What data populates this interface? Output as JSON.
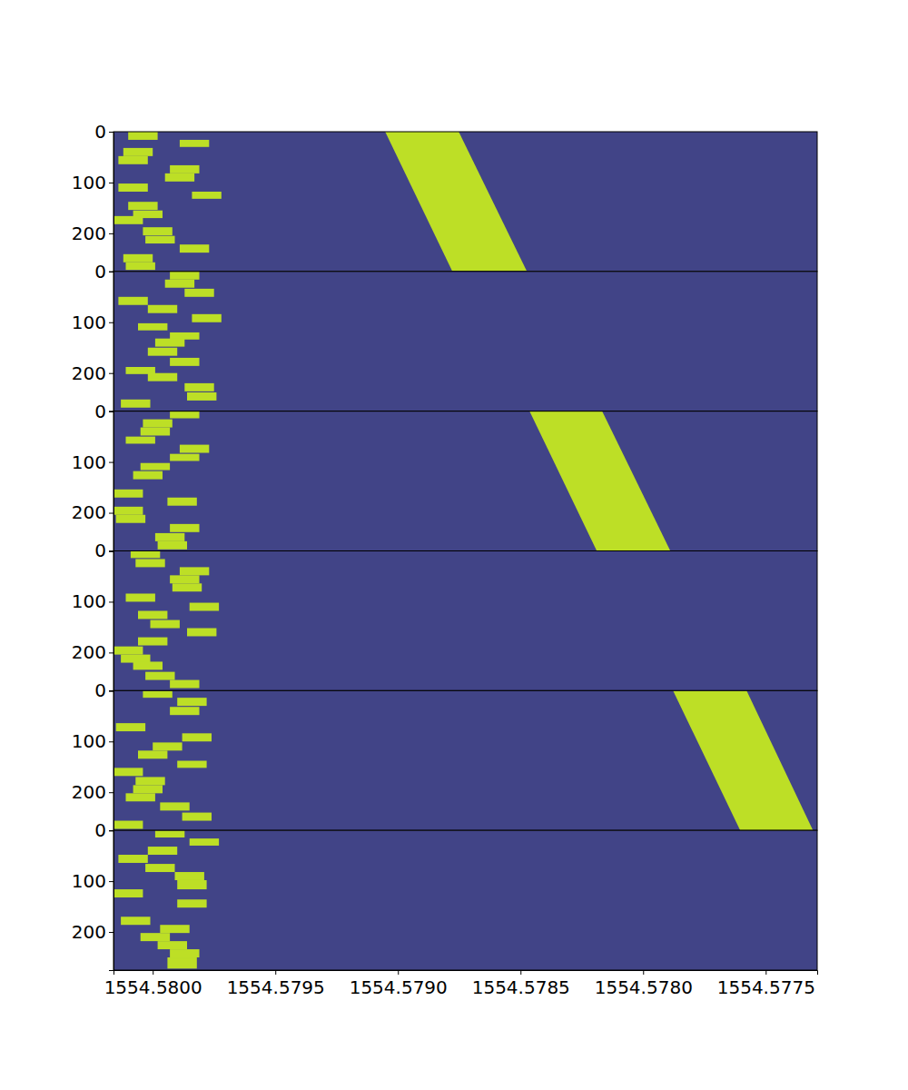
{
  "chart_data": {
    "type": "heatmap",
    "xlim": [
      1554.58016,
      1554.57729
    ],
    "xticks": [
      {
        "value": 1554.58,
        "label": "1554.5800"
      },
      {
        "value": 1554.5795,
        "label": "1554.5795"
      },
      {
        "value": 1554.579,
        "label": "1554.5790"
      },
      {
        "value": 1554.5785,
        "label": "1554.5785"
      },
      {
        "value": 1554.578,
        "label": "1554.5780"
      },
      {
        "value": 1554.5775,
        "label": "1554.5775"
      }
    ],
    "ylim": [
      0,
      275
    ],
    "yticks": [
      0,
      100,
      200
    ],
    "clim": [
      0,
      1
    ],
    "panels": [
      {
        "background": 0.2,
        "rects": [
          [
            0,
            16,
            1554.5801,
            1554.57998,
            0.9
          ],
          [
            16,
            30,
            1554.57989,
            1554.57977,
            0.9
          ],
          [
            32,
            48,
            1554.58012,
            1554.58,
            0.9
          ],
          [
            48,
            64,
            1554.58014,
            1554.58002,
            0.9
          ],
          [
            66,
            82,
            1554.57993,
            1554.57981,
            0.9
          ],
          [
            82,
            98,
            1554.57995,
            1554.57983,
            0.9
          ],
          [
            102,
            118,
            1554.58014,
            1554.58002,
            0.9
          ],
          [
            118,
            132,
            1554.57984,
            1554.57972,
            0.9
          ],
          [
            138,
            154,
            1554.5801,
            1554.57998,
            0.9
          ],
          [
            155,
            170,
            1554.58008,
            1554.57996,
            0.9
          ],
          [
            166,
            182,
            1554.58016,
            1554.58004,
            0.9
          ],
          [
            188,
            204,
            1554.58004,
            1554.57992,
            0.9
          ],
          [
            205,
            220,
            1554.58003,
            1554.57991,
            0.9
          ],
          [
            222,
            238,
            1554.57989,
            1554.57977,
            0.9
          ],
          [
            241,
            257,
            1554.58012,
            1554.58,
            0.9
          ],
          [
            257,
            272,
            1554.58011,
            1554.57999,
            0.9
          ]
        ],
        "sweep": {
          "y": [
            0,
            275
          ],
          "x_left": [
            1554.579052,
            1554.578778
          ],
          "x_right": [
            1554.578752,
            1554.578474
          ],
          "value": 0.9
        }
      },
      {
        "background": 0.2,
        "rects": [
          [
            0,
            16,
            1554.57993,
            1554.57981,
            0.9
          ],
          [
            16,
            32,
            1554.57995,
            1554.57983,
            0.9
          ],
          [
            34,
            50,
            1554.57987,
            1554.57975,
            0.9
          ],
          [
            50,
            66,
            1554.58014,
            1554.58002,
            0.9
          ],
          [
            66,
            82,
            1554.58002,
            1554.5799,
            0.9
          ],
          [
            84,
            100,
            1554.57984,
            1554.57972,
            0.9
          ],
          [
            102,
            116,
            1554.58006,
            1554.57994,
            0.9
          ],
          [
            120,
            134,
            1554.57993,
            1554.57981,
            0.9
          ],
          [
            132,
            148,
            1554.57999,
            1554.57987,
            0.9
          ],
          [
            150,
            166,
            1554.58002,
            1554.5799,
            0.9
          ],
          [
            170,
            186,
            1554.57993,
            1554.57981,
            0.9
          ],
          [
            188,
            202,
            1554.58011,
            1554.57999,
            0.9
          ],
          [
            200,
            216,
            1554.58002,
            1554.5799,
            0.9
          ],
          [
            220,
            236,
            1554.57987,
            1554.57975,
            0.9
          ],
          [
            238,
            254,
            1554.57986,
            1554.57974,
            0.9
          ],
          [
            252,
            268,
            1554.58013,
            1554.58001,
            0.9
          ]
        ]
      },
      {
        "background": 0.2,
        "rects": [
          [
            0,
            14,
            1554.57993,
            1554.57981,
            0.9
          ],
          [
            16,
            32,
            1554.58004,
            1554.57992,
            0.9
          ],
          [
            32,
            48,
            1554.58005,
            1554.57993,
            0.9
          ],
          [
            50,
            64,
            1554.58011,
            1554.57999,
            0.9
          ],
          [
            66,
            82,
            1554.57989,
            1554.57977,
            0.9
          ],
          [
            84,
            98,
            1554.57993,
            1554.57981,
            0.9
          ],
          [
            102,
            116,
            1554.58005,
            1554.57993,
            0.9
          ],
          [
            118,
            134,
            1554.58008,
            1554.57996,
            0.9
          ],
          [
            154,
            170,
            1554.58016,
            1554.58004,
            0.9
          ],
          [
            170,
            186,
            1554.57994,
            1554.57982,
            0.9
          ],
          [
            188,
            204,
            1554.58016,
            1554.58004,
            0.9
          ],
          [
            204,
            220,
            1554.58015,
            1554.58003,
            0.9
          ],
          [
            222,
            238,
            1554.57993,
            1554.57981,
            0.9
          ],
          [
            240,
            256,
            1554.57999,
            1554.57987,
            0.9
          ],
          [
            256,
            272,
            1554.57998,
            1554.57986,
            0.9
          ]
        ],
        "sweep": {
          "y": [
            0,
            275
          ],
          "x_left": [
            1554.578463,
            1554.578189
          ],
          "x_right": [
            1554.578167,
            1554.577889
          ],
          "value": 0.9
        }
      },
      {
        "background": 0.2,
        "rects": [
          [
            0,
            14,
            1554.58009,
            1554.57997,
            0.9
          ],
          [
            16,
            32,
            1554.58007,
            1554.57995,
            0.9
          ],
          [
            32,
            48,
            1554.57989,
            1554.57977,
            0.9
          ],
          [
            48,
            64,
            1554.57993,
            1554.57981,
            0.9
          ],
          [
            64,
            80,
            1554.57992,
            1554.5798,
            0.9
          ],
          [
            84,
            100,
            1554.58011,
            1554.57999,
            0.9
          ],
          [
            102,
            118,
            1554.57985,
            1554.57973,
            0.9
          ],
          [
            118,
            134,
            1554.58006,
            1554.57994,
            0.9
          ],
          [
            136,
            152,
            1554.58001,
            1554.57989,
            0.9
          ],
          [
            152,
            168,
            1554.57986,
            1554.57974,
            0.9
          ],
          [
            170,
            186,
            1554.58006,
            1554.57994,
            0.9
          ],
          [
            188,
            204,
            1554.58016,
            1554.58004,
            0.9
          ],
          [
            204,
            220,
            1554.58013,
            1554.58001,
            0.9
          ],
          [
            218,
            234,
            1554.58008,
            1554.57996,
            0.9
          ],
          [
            238,
            254,
            1554.58003,
            1554.57991,
            0.9
          ],
          [
            254,
            270,
            1554.57993,
            1554.57981,
            0.9
          ]
        ]
      },
      {
        "background": 0.2,
        "rects": [
          [
            0,
            14,
            1554.58004,
            1554.57992,
            0.9
          ],
          [
            14,
            30,
            1554.5799,
            1554.57978,
            0.9
          ],
          [
            32,
            48,
            1554.57993,
            1554.57981,
            0.9
          ],
          [
            64,
            80,
            1554.58015,
            1554.58003,
            0.9
          ],
          [
            84,
            100,
            1554.57988,
            1554.57976,
            0.9
          ],
          [
            102,
            118,
            1554.58,
            1554.57988,
            0.9
          ],
          [
            118,
            134,
            1554.58006,
            1554.57994,
            0.9
          ],
          [
            138,
            152,
            1554.5799,
            1554.57978,
            0.9
          ],
          [
            152,
            168,
            1554.58016,
            1554.58004,
            0.9
          ],
          [
            170,
            186,
            1554.58007,
            1554.57995,
            0.9
          ],
          [
            186,
            202,
            1554.58008,
            1554.57996,
            0.9
          ],
          [
            202,
            218,
            1554.58011,
            1554.57999,
            0.9
          ],
          [
            220,
            236,
            1554.57997,
            1554.57985,
            0.9
          ],
          [
            240,
            256,
            1554.57988,
            1554.57976,
            0.9
          ],
          [
            256,
            272,
            1554.58016,
            1554.58004,
            0.9
          ]
        ],
        "sweep": {
          "y": [
            0,
            275
          ],
          "x_left": [
            1554.577878,
            1554.577604
          ],
          "x_right": [
            1554.577578,
            1554.577307
          ],
          "value": 0.9
        }
      },
      {
        "background": 0.2,
        "rects": [
          [
            0,
            14,
            1554.57999,
            1554.57987,
            0.9
          ],
          [
            16,
            30,
            1554.57985,
            1554.57973,
            0.9
          ],
          [
            32,
            48,
            1554.58002,
            1554.5799,
            0.9
          ],
          [
            48,
            64,
            1554.58014,
            1554.58002,
            0.9
          ],
          [
            66,
            82,
            1554.58003,
            1554.57991,
            0.9
          ],
          [
            82,
            98,
            1554.57991,
            1554.57979,
            0.9
          ],
          [
            98,
            116,
            1554.5799,
            1554.57978,
            0.9
          ],
          [
            116,
            132,
            1554.58016,
            1554.58004,
            0.9
          ],
          [
            136,
            152,
            1554.5799,
            1554.57978,
            0.9
          ],
          [
            170,
            186,
            1554.58013,
            1554.58001,
            0.9
          ],
          [
            186,
            202,
            1554.57997,
            1554.57985,
            0.9
          ],
          [
            202,
            218,
            1554.58005,
            1554.57993,
            0.9
          ],
          [
            218,
            234,
            1554.57998,
            1554.57986,
            0.9
          ],
          [
            234,
            250,
            1554.57993,
            1554.57981,
            0.9
          ],
          [
            250,
            272,
            1554.57994,
            1554.57982,
            0.9
          ]
        ]
      }
    ]
  }
}
